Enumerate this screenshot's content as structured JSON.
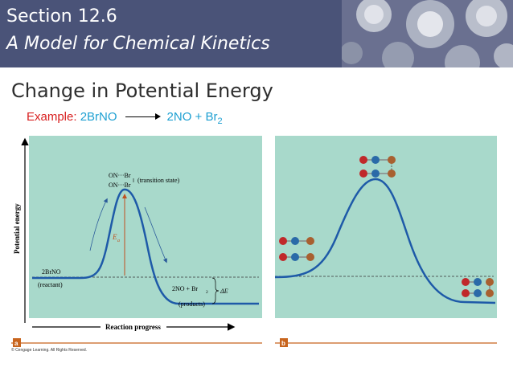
{
  "header": {
    "section": "Section 12.6",
    "subtitle": "A Model for Chemical Kinetics"
  },
  "slide": {
    "title": "Change in Potential Energy",
    "example_label": "Example",
    "reactant": "2BrNO",
    "products": "2NO + Br",
    "products_subscript": "2"
  },
  "panel_a": {
    "y_axis_label": "Potential energy",
    "x_axis_label": "Reaction progress",
    "ts_line1": "ON···Br",
    "ts_line2": "ON···Br",
    "ts_label": "(transition state)",
    "ea_label": "E",
    "ea_subscript": "a",
    "reactant_label": "2BrNO",
    "reactant_caption": "(reactant)",
    "product_label": "2NO + Br",
    "product_subscript": "2",
    "product_caption": "(products)",
    "delta_e_label": "ΔE",
    "tag": "a",
    "copyright": "© Cengage Learning. All Rights Reserved."
  },
  "panel_b": {
    "tag": "b"
  },
  "colors": {
    "header_bg": "#4a5378",
    "panel_bg": "#a8d9cb",
    "curve": "#1e5aa8",
    "example_label": "#d81e1e",
    "example_text": "#1ea0d2",
    "tag_bg": "#c8651e",
    "ea_arrow": "#c05020",
    "atom_red": "#c0282a",
    "atom_blue": "#2a6aa8",
    "atom_brown": "#a86030"
  }
}
